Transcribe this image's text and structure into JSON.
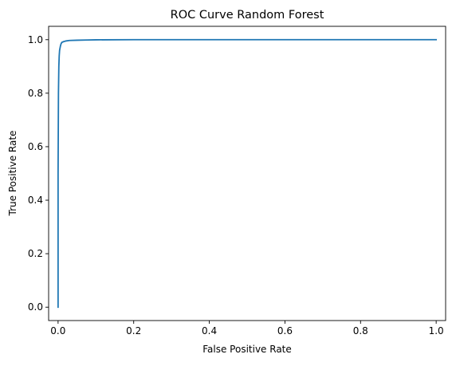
{
  "chart_data": {
    "type": "line",
    "title": "ROC Curve Random Forest",
    "xlabel": "False Positive Rate",
    "ylabel": "True Positive Rate",
    "xlim": [
      -0.025,
      1.025
    ],
    "ylim": [
      -0.05,
      1.05
    ],
    "xticks": [
      0.0,
      0.2,
      0.4,
      0.6,
      0.8,
      1.0
    ],
    "xtick_labels": [
      "0.0",
      "0.2",
      "0.4",
      "0.6",
      "0.8",
      "1.0"
    ],
    "yticks": [
      0.0,
      0.2,
      0.4,
      0.6,
      0.8,
      1.0
    ],
    "ytick_labels": [
      "0.0",
      "0.2",
      "0.4",
      "0.6",
      "0.8",
      "1.0"
    ],
    "grid": false,
    "legend": "none",
    "series": [
      {
        "color": "#1f77b4",
        "x": [
          0.0,
          0.0,
          0.001,
          0.002,
          0.003,
          0.004,
          0.006,
          0.008,
          0.01,
          0.015,
          0.02,
          0.03,
          0.05,
          0.08,
          0.1,
          0.2,
          0.4,
          0.6,
          0.8,
          1.0
        ],
        "y": [
          0.0,
          0.5,
          0.8,
          0.9,
          0.94,
          0.96,
          0.975,
          0.985,
          0.99,
          0.993,
          0.995,
          0.997,
          0.998,
          0.999,
          0.9995,
          1.0,
          1.0,
          1.0,
          1.0,
          1.0
        ]
      }
    ]
  }
}
